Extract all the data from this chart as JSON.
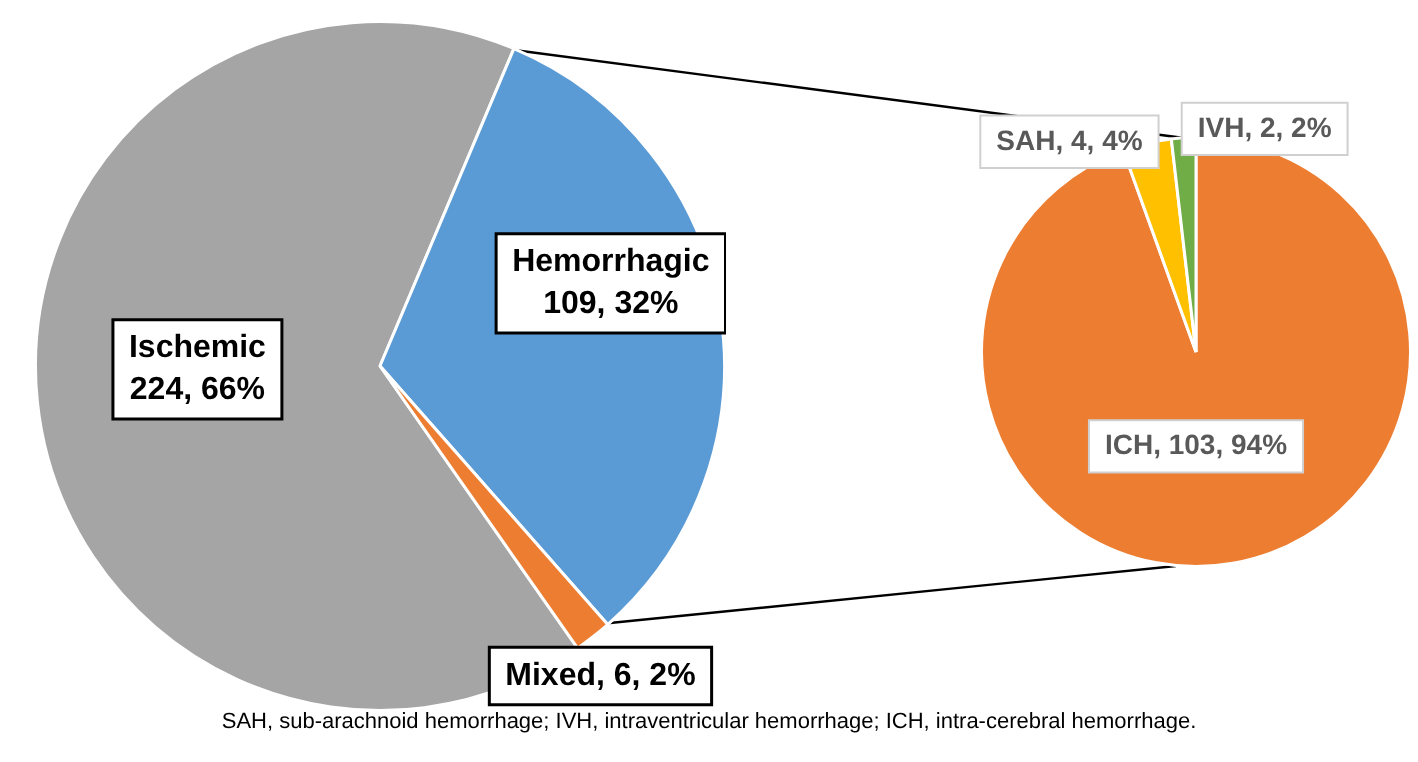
{
  "chart_data": [
    {
      "type": "pie",
      "categories": [
        "Ischemic",
        "Hemorrhagic",
        "Mixed"
      ],
      "values": [
        224,
        109,
        6
      ],
      "colors": [
        "#a5a5a5",
        "#5b9bd5",
        "#ed7d31"
      ],
      "value_labels": [
        "224, 66%",
        "109, 32%",
        "6, 2%"
      ],
      "annotations": [
        "SAH, sub-arachnoid hemorrhage; IVH, intraventricular hemorrhage; ICH, intra-cerebral hemorrhage."
      ]
    },
    {
      "type": "pie",
      "categories": [
        "ICH",
        "SAH",
        "IVH"
      ],
      "values": [
        103,
        4,
        2
      ],
      "colors": [
        "#ed7d31",
        "#ffc000",
        "#70ad47"
      ],
      "value_labels": [
        "103, 94%",
        "4, 4%",
        "2, 2%"
      ]
    }
  ]
}
